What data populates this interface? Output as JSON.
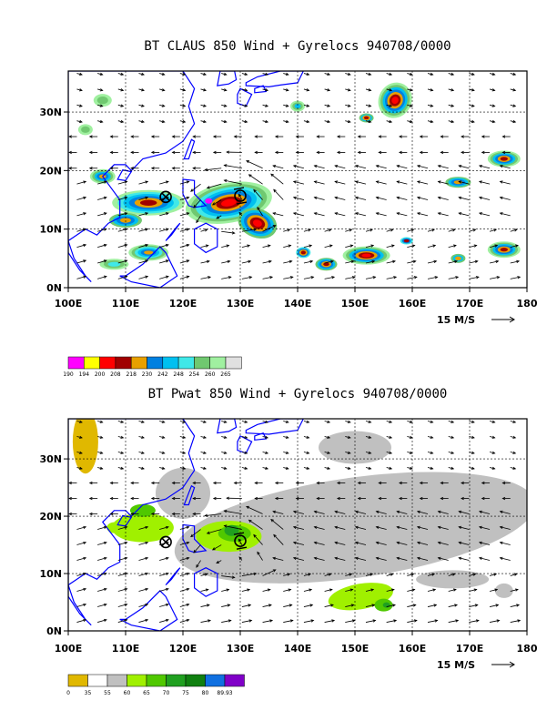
{
  "panels": [
    {
      "title": "BT CLAUS 850 Wind + Gyrelocs 940708/0000",
      "reference_vector": "15 M/S",
      "colorbar": {
        "labels": [
          "190",
          "194",
          "200",
          "208",
          "218",
          "230",
          "242",
          "248",
          "254",
          "260",
          "265"
        ],
        "colors": [
          "#ff00ff",
          "#ffff00",
          "#ff0000",
          "#a00000",
          "#e8a000",
          "#0080e0",
          "#00c0f0",
          "#40e8e8",
          "#70c870",
          "#a0f0a0",
          "#e0e0e0"
        ]
      }
    },
    {
      "title": "BT Pwat 850 Wind + Gyrelocs 940708/0000",
      "reference_vector": "15 M/S",
      "colorbar": {
        "labels": [
          "0",
          "35",
          "55",
          "60",
          "65",
          "70",
          "75",
          "80",
          "89.93"
        ],
        "colors": [
          "#e0b800",
          "#ffffff",
          "#c0c0c0",
          "#a0f000",
          "#50c800",
          "#20a020",
          "#108010",
          "#1070e0",
          "#8000c8"
        ]
      }
    }
  ],
  "axes": {
    "x_ticks": [
      "100E",
      "110E",
      "120E",
      "130E",
      "140E",
      "150E",
      "160E",
      "170E",
      "180"
    ],
    "y_ticks": [
      "0N",
      "10N",
      "20N",
      "30N"
    ],
    "lon_range": [
      100,
      180
    ],
    "lat_range": [
      0,
      37
    ]
  },
  "gyre_locations": [
    {
      "lon": 117,
      "lat": 15.5,
      "symbol": "circled-x"
    },
    {
      "lon": 130,
      "lat": 15.7,
      "symbol": "circle-sigma"
    }
  ],
  "colors": {
    "coastline": "#0000ff"
  }
}
